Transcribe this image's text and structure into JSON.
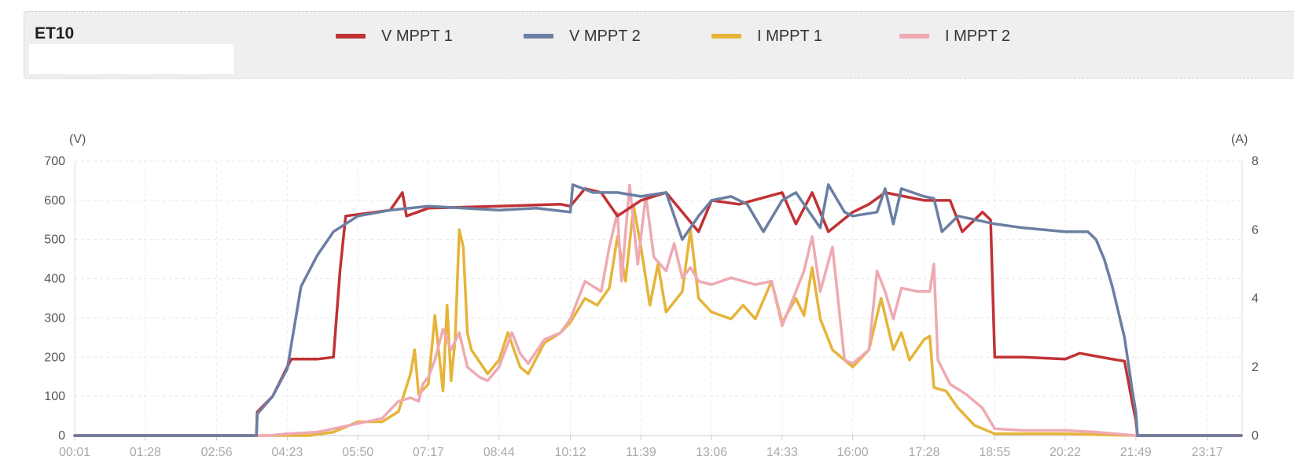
{
  "panel": {
    "device_name": "ET10",
    "device_box": ""
  },
  "legend": [
    {
      "label": "V MPPT 1",
      "color": "#c03235"
    },
    {
      "label": "V MPPT 2",
      "color": "#6b7fa3"
    },
    {
      "label": "I MPPT 1",
      "color": "#e6b43a"
    },
    {
      "label": "I MPPT 2",
      "color": "#eeaab2"
    }
  ],
  "chart_data": {
    "type": "line",
    "x_labels": [
      "00:01",
      "01:28",
      "02:56",
      "04:23",
      "05:50",
      "07:17",
      "08:44",
      "10:12",
      "11:39",
      "13:06",
      "14:33",
      "16:00",
      "17:28",
      "18:55",
      "20:22",
      "21:49",
      "23:17"
    ],
    "y_left": {
      "unit": "(V)",
      "range": [
        0,
        700
      ],
      "ticks": [
        0,
        100,
        200,
        300,
        400,
        500,
        600,
        700
      ]
    },
    "y_right": {
      "unit": "(A)",
      "range": [
        0,
        8
      ],
      "ticks": [
        0,
        2,
        4,
        6,
        8
      ]
    },
    "grid": true,
    "legend_position": "top",
    "series": [
      {
        "name": "V MPPT 1",
        "axis": "left",
        "color": "#c03235",
        "points": [
          [
            "00:01",
            0
          ],
          [
            "03:45",
            0
          ],
          [
            "03:46",
            60
          ],
          [
            "04:05",
            100
          ],
          [
            "04:23",
            175
          ],
          [
            "04:28",
            195
          ],
          [
            "05:00",
            195
          ],
          [
            "05:20",
            200
          ],
          [
            "05:28",
            420
          ],
          [
            "05:35",
            560
          ],
          [
            "06:30",
            575
          ],
          [
            "06:45",
            620
          ],
          [
            "06:50",
            560
          ],
          [
            "07:17",
            580
          ],
          [
            "08:44",
            585
          ],
          [
            "10:00",
            590
          ],
          [
            "10:12",
            585
          ],
          [
            "10:30",
            630
          ],
          [
            "10:50",
            620
          ],
          [
            "11:10",
            560
          ],
          [
            "11:39",
            600
          ],
          [
            "12:10",
            620
          ],
          [
            "12:50",
            520
          ],
          [
            "13:06",
            600
          ],
          [
            "13:40",
            590
          ],
          [
            "14:33",
            620
          ],
          [
            "14:50",
            540
          ],
          [
            "15:10",
            620
          ],
          [
            "15:30",
            520
          ],
          [
            "16:00",
            570
          ],
          [
            "16:20",
            590
          ],
          [
            "16:40",
            620
          ],
          [
            "17:28",
            600
          ],
          [
            "18:00",
            600
          ],
          [
            "18:15",
            520
          ],
          [
            "18:40",
            570
          ],
          [
            "18:50",
            550
          ],
          [
            "18:55",
            200
          ],
          [
            "19:30",
            200
          ],
          [
            "20:22",
            195
          ],
          [
            "20:40",
            210
          ],
          [
            "21:20",
            195
          ],
          [
            "21:35",
            190
          ],
          [
            "21:45",
            80
          ],
          [
            "21:49",
            40
          ],
          [
            "21:51",
            0
          ],
          [
            "23:59",
            0
          ]
        ]
      },
      {
        "name": "V MPPT 2",
        "axis": "left",
        "color": "#6b7fa3",
        "points": [
          [
            "00:01",
            0
          ],
          [
            "03:45",
            0
          ],
          [
            "03:46",
            55
          ],
          [
            "04:05",
            100
          ],
          [
            "04:23",
            170
          ],
          [
            "04:40",
            380
          ],
          [
            "05:00",
            460
          ],
          [
            "05:20",
            520
          ],
          [
            "05:50",
            560
          ],
          [
            "06:30",
            575
          ],
          [
            "07:17",
            585
          ],
          [
            "08:00",
            580
          ],
          [
            "08:44",
            575
          ],
          [
            "09:30",
            580
          ],
          [
            "10:12",
            570
          ],
          [
            "10:15",
            640
          ],
          [
            "10:40",
            620
          ],
          [
            "11:10",
            620
          ],
          [
            "11:39",
            610
          ],
          [
            "12:10",
            620
          ],
          [
            "12:30",
            500
          ],
          [
            "12:50",
            560
          ],
          [
            "13:06",
            600
          ],
          [
            "13:30",
            610
          ],
          [
            "13:50",
            590
          ],
          [
            "14:10",
            520
          ],
          [
            "14:33",
            600
          ],
          [
            "14:50",
            620
          ],
          [
            "15:20",
            530
          ],
          [
            "15:30",
            640
          ],
          [
            "15:50",
            570
          ],
          [
            "16:00",
            560
          ],
          [
            "16:30",
            570
          ],
          [
            "16:40",
            630
          ],
          [
            "16:50",
            540
          ],
          [
            "17:00",
            630
          ],
          [
            "17:28",
            610
          ],
          [
            "17:40",
            605
          ],
          [
            "17:50",
            520
          ],
          [
            "18:10",
            560
          ],
          [
            "18:55",
            540
          ],
          [
            "19:30",
            530
          ],
          [
            "20:22",
            520
          ],
          [
            "20:50",
            520
          ],
          [
            "21:00",
            500
          ],
          [
            "21:10",
            450
          ],
          [
            "21:20",
            380
          ],
          [
            "21:35",
            250
          ],
          [
            "21:45",
            110
          ],
          [
            "21:49",
            60
          ],
          [
            "21:51",
            0
          ],
          [
            "23:59",
            0
          ]
        ]
      },
      {
        "name": "I MPPT 1",
        "axis": "right",
        "color": "#e6b43a",
        "points": [
          [
            "00:01",
            0
          ],
          [
            "04:50",
            0
          ],
          [
            "05:20",
            0.1
          ],
          [
            "05:50",
            0.4
          ],
          [
            "06:20",
            0.4
          ],
          [
            "06:40",
            0.7
          ],
          [
            "06:55",
            1.8
          ],
          [
            "07:00",
            2.5
          ],
          [
            "07:05",
            1.2
          ],
          [
            "07:17",
            1.5
          ],
          [
            "07:25",
            3.5
          ],
          [
            "07:35",
            1.3
          ],
          [
            "07:40",
            3.8
          ],
          [
            "07:45",
            1.6
          ],
          [
            "07:50",
            2.8
          ],
          [
            "07:55",
            6.0
          ],
          [
            "08:00",
            5.5
          ],
          [
            "08:05",
            3.0
          ],
          [
            "08:10",
            2.5
          ],
          [
            "08:30",
            1.8
          ],
          [
            "08:44",
            2.2
          ],
          [
            "08:55",
            3.0
          ],
          [
            "09:10",
            2.0
          ],
          [
            "09:20",
            1.8
          ],
          [
            "09:40",
            2.7
          ],
          [
            "10:00",
            3.0
          ],
          [
            "10:12",
            3.3
          ],
          [
            "10:30",
            4.0
          ],
          [
            "10:45",
            3.8
          ],
          [
            "11:00",
            4.3
          ],
          [
            "11:10",
            5.8
          ],
          [
            "11:20",
            4.5
          ],
          [
            "11:30",
            6.7
          ],
          [
            "11:39",
            5.5
          ],
          [
            "11:50",
            3.8
          ],
          [
            "12:00",
            5.0
          ],
          [
            "12:10",
            3.6
          ],
          [
            "12:30",
            4.2
          ],
          [
            "12:40",
            6.0
          ],
          [
            "12:50",
            4.0
          ],
          [
            "13:06",
            3.6
          ],
          [
            "13:30",
            3.4
          ],
          [
            "13:45",
            3.8
          ],
          [
            "14:00",
            3.4
          ],
          [
            "14:20",
            4.5
          ],
          [
            "14:33",
            3.3
          ],
          [
            "14:50",
            4.0
          ],
          [
            "15:00",
            3.5
          ],
          [
            "15:10",
            4.9
          ],
          [
            "15:20",
            3.4
          ],
          [
            "15:35",
            2.5
          ],
          [
            "15:50",
            2.2
          ],
          [
            "16:00",
            2.0
          ],
          [
            "16:20",
            2.5
          ],
          [
            "16:35",
            4.0
          ],
          [
            "16:50",
            2.5
          ],
          [
            "17:00",
            3.0
          ],
          [
            "17:10",
            2.2
          ],
          [
            "17:28",
            2.8
          ],
          [
            "17:35",
            2.9
          ],
          [
            "17:40",
            1.4
          ],
          [
            "17:55",
            1.3
          ],
          [
            "18:10",
            0.8
          ],
          [
            "18:30",
            0.3
          ],
          [
            "18:55",
            0.05
          ],
          [
            "20:22",
            0.05
          ],
          [
            "21:49",
            0
          ],
          [
            "23:59",
            0
          ]
        ]
      },
      {
        "name": "I MPPT 2",
        "axis": "right",
        "color": "#eeaab2",
        "points": [
          [
            "00:01",
            0
          ],
          [
            "04:00",
            0
          ],
          [
            "04:23",
            0.05
          ],
          [
            "05:00",
            0.1
          ],
          [
            "05:20",
            0.2
          ],
          [
            "05:50",
            0.35
          ],
          [
            "06:20",
            0.5
          ],
          [
            "06:40",
            1.0
          ],
          [
            "06:55",
            1.1
          ],
          [
            "07:05",
            1.0
          ],
          [
            "07:10",
            1.5
          ],
          [
            "07:17",
            1.7
          ],
          [
            "07:25",
            2.2
          ],
          [
            "07:35",
            3.1
          ],
          [
            "07:45",
            2.5
          ],
          [
            "07:55",
            3.0
          ],
          [
            "08:05",
            2.0
          ],
          [
            "08:20",
            1.7
          ],
          [
            "08:30",
            1.6
          ],
          [
            "08:44",
            2.0
          ],
          [
            "09:00",
            3.0
          ],
          [
            "09:10",
            2.4
          ],
          [
            "09:20",
            2.1
          ],
          [
            "09:40",
            2.8
          ],
          [
            "10:00",
            3.0
          ],
          [
            "10:12",
            3.4
          ],
          [
            "10:30",
            4.5
          ],
          [
            "10:50",
            4.2
          ],
          [
            "11:00",
            5.5
          ],
          [
            "11:10",
            6.5
          ],
          [
            "11:15",
            4.5
          ],
          [
            "11:25",
            7.3
          ],
          [
            "11:35",
            5.0
          ],
          [
            "11:45",
            7.0
          ],
          [
            "11:55",
            5.2
          ],
          [
            "12:10",
            4.8
          ],
          [
            "12:20",
            5.6
          ],
          [
            "12:30",
            4.6
          ],
          [
            "12:40",
            4.9
          ],
          [
            "12:50",
            4.5
          ],
          [
            "13:06",
            4.4
          ],
          [
            "13:30",
            4.6
          ],
          [
            "14:00",
            4.4
          ],
          [
            "14:20",
            4.5
          ],
          [
            "14:33",
            3.2
          ],
          [
            "14:50",
            4.2
          ],
          [
            "15:00",
            4.8
          ],
          [
            "15:10",
            5.8
          ],
          [
            "15:20",
            4.2
          ],
          [
            "15:35",
            5.5
          ],
          [
            "15:50",
            2.2
          ],
          [
            "16:00",
            2.1
          ],
          [
            "16:20",
            2.5
          ],
          [
            "16:30",
            4.8
          ],
          [
            "16:40",
            4.2
          ],
          [
            "16:50",
            3.4
          ],
          [
            "17:00",
            4.3
          ],
          [
            "17:20",
            4.2
          ],
          [
            "17:35",
            4.2
          ],
          [
            "17:40",
            5.0
          ],
          [
            "17:45",
            2.2
          ],
          [
            "18:00",
            1.5
          ],
          [
            "18:20",
            1.2
          ],
          [
            "18:40",
            0.8
          ],
          [
            "18:55",
            0.2
          ],
          [
            "19:30",
            0.15
          ],
          [
            "20:22",
            0.15
          ],
          [
            "21:00",
            0.1
          ],
          [
            "21:49",
            0
          ],
          [
            "23:59",
            0
          ]
        ]
      }
    ]
  }
}
